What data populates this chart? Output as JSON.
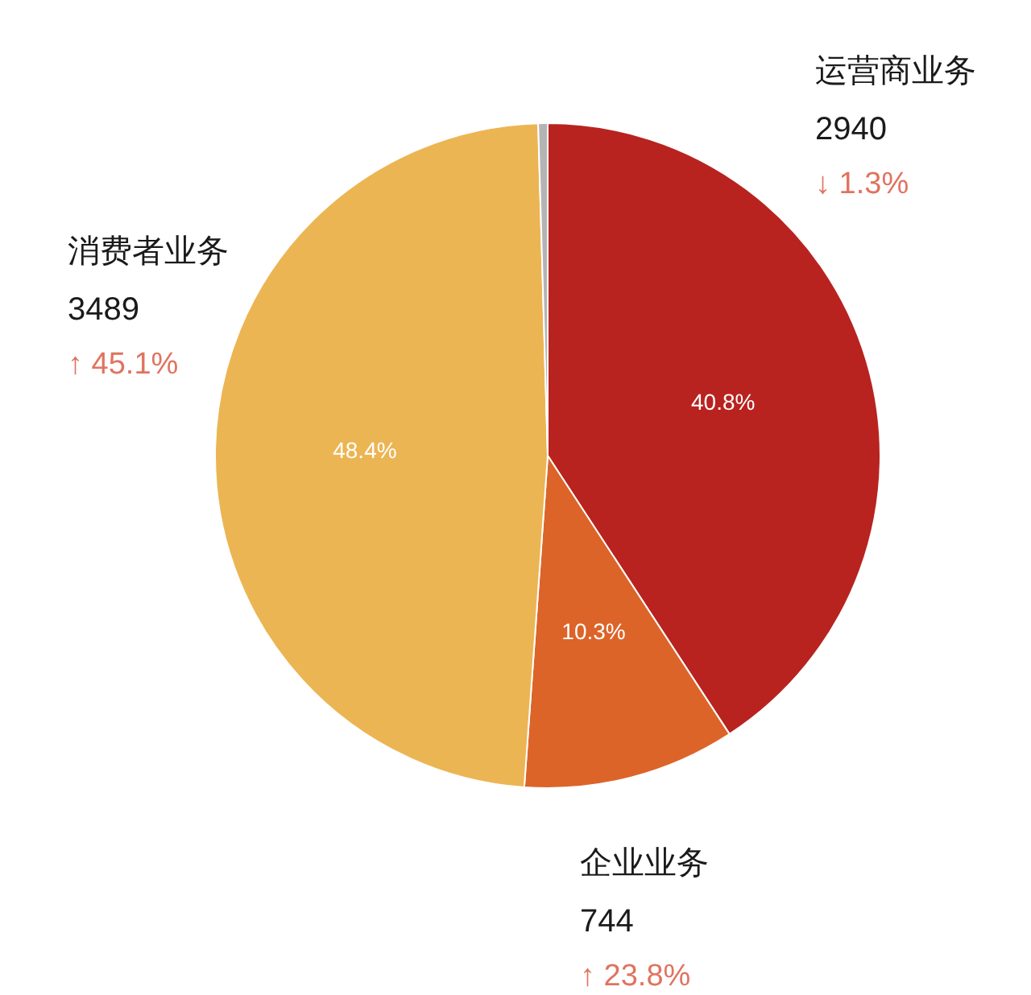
{
  "chart_data": {
    "type": "pie",
    "categories": [
      "运营商业务",
      "企业业务",
      "消费者业务",
      null
    ],
    "values": [
      2940,
      744,
      3489,
      33
    ],
    "colors": [
      "#b8231f",
      "#dc6428",
      "#ecb553",
      "#b4b4b4"
    ],
    "value_labels": [
      "2940",
      "744",
      "3489",
      null
    ],
    "annotations": [
      {
        "text": "40.8%",
        "x": "运营商业务"
      },
      {
        "text": "10.3%",
        "x": "企业业务"
      },
      {
        "text": "48.4%",
        "x": "消费者业务"
      },
      {
        "text": "↓ 1.3%",
        "x": "运营商业务"
      },
      {
        "text": "↑ 23.8%",
        "x": "企业业务"
      },
      {
        "text": "↑ 45.1%",
        "x": "消费者业务"
      }
    ],
    "legend": false
  }
}
